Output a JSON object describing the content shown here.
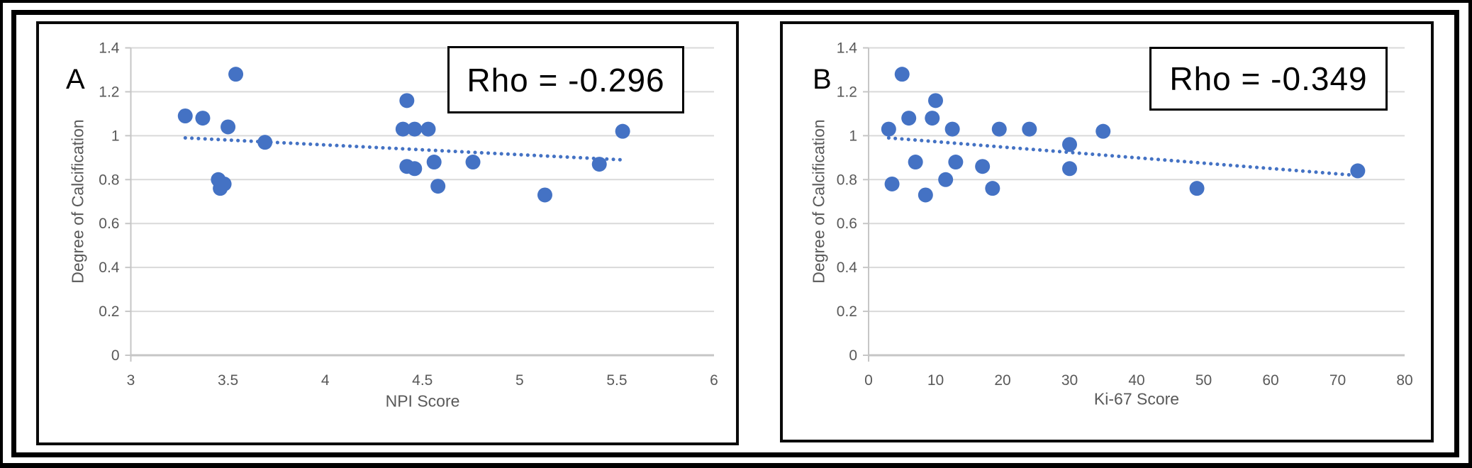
{
  "figure": {
    "description": "Two scatter plots of Degree of Calcification versus tumour scores",
    "background": "#ffffff"
  },
  "colors": {
    "accent": "#4472C4",
    "gridline": "#D9D9D9",
    "axis_line": "#C6C6C6",
    "tick_text": "#595959",
    "frame": "#000000"
  },
  "chart_data": [
    {
      "type": "scatter",
      "panel_label": "A",
      "annotation": "Rho = -0.296",
      "rho": -0.296,
      "xlabel": "NPI Score",
      "ylabel": "Degree of Calcification",
      "xlim": [
        3,
        6
      ],
      "ylim": [
        0,
        1.4
      ],
      "grid": true,
      "x_ticks": [
        {
          "v": 3,
          "label": "3"
        },
        {
          "v": 3.5,
          "label": "3.5"
        },
        {
          "v": 4,
          "label": "4"
        },
        {
          "v": 4.5,
          "label": "4.5"
        },
        {
          "v": 5,
          "label": "5"
        },
        {
          "v": 5.5,
          "label": "5.5"
        },
        {
          "v": 6,
          "label": "6"
        }
      ],
      "y_ticks": [
        {
          "v": 0,
          "label": "0"
        },
        {
          "v": 0.2,
          "label": "0.2"
        },
        {
          "v": 0.4,
          "label": "0.4"
        },
        {
          "v": 0.6,
          "label": "0.6"
        },
        {
          "v": 0.8,
          "label": "0.8"
        },
        {
          "v": 1,
          "label": "1"
        },
        {
          "v": 1.2,
          "label": "1.2"
        },
        {
          "v": 1.4,
          "label": "1.4"
        }
      ],
      "points": [
        [
          3.28,
          1.09
        ],
        [
          3.37,
          1.08
        ],
        [
          3.45,
          0.8
        ],
        [
          3.48,
          0.78
        ],
        [
          3.46,
          0.76
        ],
        [
          3.5,
          1.04
        ],
        [
          3.54,
          1.28
        ],
        [
          3.69,
          0.97
        ],
        [
          4.4,
          1.03
        ],
        [
          4.42,
          1.16
        ],
        [
          4.42,
          0.86
        ],
        [
          4.46,
          1.03
        ],
        [
          4.46,
          0.85
        ],
        [
          4.53,
          1.03
        ],
        [
          4.56,
          0.88
        ],
        [
          4.58,
          0.77
        ],
        [
          4.76,
          0.88
        ],
        [
          5.13,
          0.73
        ],
        [
          5.41,
          0.87
        ],
        [
          5.53,
          1.02
        ]
      ],
      "trendline": {
        "x1": 3.28,
        "y1": 0.99,
        "x2": 5.53,
        "y2": 0.89,
        "style": "dotted"
      }
    },
    {
      "type": "scatter",
      "panel_label": "B",
      "annotation": "Rho = -0.349",
      "rho": -0.349,
      "xlabel": "Ki-67 Score",
      "ylabel": "Degree of Calcification",
      "xlim": [
        0,
        80
      ],
      "ylim": [
        0,
        1.4
      ],
      "grid": true,
      "x_ticks": [
        {
          "v": 0,
          "label": "0"
        },
        {
          "v": 10,
          "label": "10"
        },
        {
          "v": 20,
          "label": "20"
        },
        {
          "v": 30,
          "label": "30"
        },
        {
          "v": 40,
          "label": "40"
        },
        {
          "v": 50,
          "label": "50"
        },
        {
          "v": 60,
          "label": "60"
        },
        {
          "v": 70,
          "label": "70"
        },
        {
          "v": 80,
          "label": "80"
        }
      ],
      "y_ticks": [
        {
          "v": 0,
          "label": "0"
        },
        {
          "v": 0.2,
          "label": "0.2"
        },
        {
          "v": 0.4,
          "label": "0.4"
        },
        {
          "v": 0.6,
          "label": "0.6"
        },
        {
          "v": 0.8,
          "label": "0.8"
        },
        {
          "v": 1,
          "label": "1"
        },
        {
          "v": 1.2,
          "label": "1.2"
        },
        {
          "v": 1.4,
          "label": "1.4"
        }
      ],
      "points": [
        [
          3,
          1.03
        ],
        [
          3.5,
          0.78
        ],
        [
          5,
          1.28
        ],
        [
          6,
          1.08
        ],
        [
          7,
          0.88
        ],
        [
          8.5,
          0.73
        ],
        [
          9.5,
          1.08
        ],
        [
          10,
          1.16
        ],
        [
          11.5,
          0.8
        ],
        [
          12.5,
          1.03
        ],
        [
          13,
          0.88
        ],
        [
          17,
          0.86
        ],
        [
          18.5,
          0.76
        ],
        [
          19.5,
          1.03
        ],
        [
          24,
          1.03
        ],
        [
          30,
          0.96
        ],
        [
          30,
          0.85
        ],
        [
          35,
          1.02
        ],
        [
          49,
          0.76
        ],
        [
          73,
          0.84
        ]
      ],
      "trendline": {
        "x1": 3,
        "y1": 0.99,
        "x2": 72.5,
        "y2": 0.82,
        "style": "dotted"
      }
    }
  ]
}
